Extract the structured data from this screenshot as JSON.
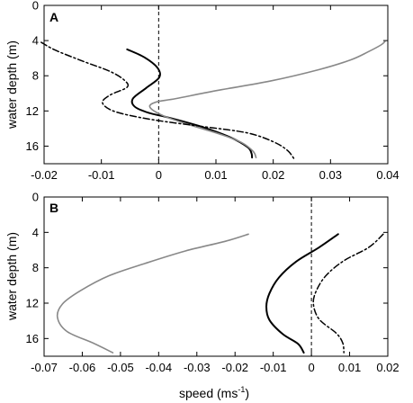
{
  "chart_data": [
    {
      "type": "line",
      "panel_label": "A",
      "ylabel": "water depth (m)",
      "xlabel": "",
      "xlim": [
        -0.02,
        0.04
      ],
      "ylim": [
        18,
        0
      ],
      "x_ticks": [
        -0.02,
        -0.01,
        0,
        0.01,
        0.02,
        0.03,
        0.04
      ],
      "x_tick_labels": [
        "-0.02",
        "-0.01",
        "0",
        "0.01",
        "0.02",
        "0.03",
        "0.04"
      ],
      "y_ticks": [
        0,
        4,
        8,
        12,
        16
      ],
      "y_tick_labels": [
        "0",
        "4",
        "8",
        "12",
        "16"
      ],
      "zero_line": {
        "x": 0,
        "style": "dashed",
        "color": "#000000"
      },
      "series": [
        {
          "color": "#000000",
          "style": "solid",
          "width": 2,
          "points": [
            [
              -0.0055,
              5.0
            ],
            [
              -0.0025,
              5.9
            ],
            [
              -0.0002,
              7.1
            ],
            [
              0.0001,
              8.2
            ],
            [
              -0.0022,
              9.4
            ],
            [
              -0.0045,
              10.6
            ],
            [
              -0.0042,
              11.5
            ],
            [
              -0.0018,
              12.2
            ],
            [
              0.002,
              12.8
            ],
            [
              0.0075,
              13.8
            ],
            [
              0.0125,
              15.0
            ],
            [
              0.0155,
              16.1
            ],
            [
              0.0162,
              16.8
            ],
            [
              0.0163,
              17.3
            ]
          ]
        },
        {
          "color": "#888888",
          "style": "solid",
          "width": 1.6,
          "points": [
            [
              0.0395,
              4.1
            ],
            [
              0.0388,
              4.5
            ],
            [
              0.0365,
              5.3
            ],
            [
              0.0335,
              6.2
            ],
            [
              0.028,
              7.3
            ],
            [
              0.0195,
              8.6
            ],
            [
              0.01,
              9.7
            ],
            [
              0.003,
              10.6
            ],
            [
              -0.0005,
              11.0
            ],
            [
              -0.0015,
              11.6
            ],
            [
              0.001,
              12.6
            ],
            [
              0.0055,
              13.6
            ],
            [
              0.011,
              14.7
            ],
            [
              0.0145,
              15.6
            ],
            [
              0.0165,
              16.6
            ],
            [
              0.017,
              17.3
            ]
          ]
        },
        {
          "color": "#000000",
          "style": "dashdot",
          "width": 1.5,
          "points": [
            [
              -0.0205,
              4.2
            ],
            [
              -0.018,
              5.1
            ],
            [
              -0.013,
              6.4
            ],
            [
              -0.0085,
              7.5
            ],
            [
              -0.006,
              8.5
            ],
            [
              -0.0055,
              9.3
            ],
            [
              -0.0085,
              10.2
            ],
            [
              -0.0098,
              11.1
            ],
            [
              -0.0075,
              12.1
            ],
            [
              -0.001,
              13.0
            ],
            [
              0.008,
              13.8
            ],
            [
              0.0155,
              14.5
            ],
            [
              0.02,
              15.5
            ],
            [
              0.0225,
              16.5
            ],
            [
              0.0238,
              17.6
            ]
          ]
        }
      ]
    },
    {
      "type": "line",
      "panel_label": "B",
      "ylabel": "water depth (m)",
      "xlabel": "speed (ms",
      "xlabel_sup": "-1",
      "xlabel_end": ")",
      "xlim": [
        -0.07,
        0.02
      ],
      "ylim": [
        18,
        0
      ],
      "x_ticks": [
        -0.07,
        -0.06,
        -0.05,
        -0.04,
        -0.03,
        -0.02,
        -0.01,
        0,
        0.01,
        0.02
      ],
      "x_tick_labels": [
        "-0.07",
        "-0.06",
        "-0.05",
        "-0.04",
        "-0.03",
        "-0.02",
        "-0.01",
        "0",
        "0.01",
        "0.02"
      ],
      "y_ticks": [
        0,
        4,
        8,
        12,
        16
      ],
      "y_tick_labels": [
        "0",
        "4",
        "8",
        "12",
        "16"
      ],
      "zero_line": {
        "x": 0,
        "style": "dashed",
        "color": "#000000"
      },
      "series": [
        {
          "color": "#888888",
          "style": "solid",
          "width": 1.6,
          "points": [
            [
              -0.0165,
              4.2
            ],
            [
              -0.0225,
              5.0
            ],
            [
              -0.033,
              6.1
            ],
            [
              -0.0435,
              7.5
            ],
            [
              -0.053,
              8.9
            ],
            [
              -0.0605,
              10.6
            ],
            [
              -0.0652,
              12.1
            ],
            [
              -0.0665,
              13.6
            ],
            [
              -0.064,
              15.2
            ],
            [
              -0.0572,
              16.5
            ],
            [
              -0.052,
              17.6
            ]
          ]
        },
        {
          "color": "#000000",
          "style": "solid",
          "width": 2,
          "points": [
            [
              0.007,
              4.2
            ],
            [
              0.002,
              5.7
            ],
            [
              -0.004,
              7.3
            ],
            [
              -0.0085,
              9.1
            ],
            [
              -0.011,
              10.9
            ],
            [
              -0.0118,
              12.4
            ],
            [
              -0.011,
              13.9
            ],
            [
              -0.0075,
              15.5
            ],
            [
              -0.0035,
              16.6
            ],
            [
              -0.002,
              17.6
            ]
          ]
        },
        {
          "color": "#000000",
          "style": "dashdot",
          "width": 1.5,
          "points": [
            [
              0.0188,
              4.2
            ],
            [
              0.015,
              5.7
            ],
            [
              0.0085,
              7.2
            ],
            [
              0.004,
              8.8
            ],
            [
              0.0015,
              10.4
            ],
            [
              0.0005,
              12.0
            ],
            [
              0.002,
              13.8
            ],
            [
              0.0065,
              15.4
            ],
            [
              0.0082,
              16.5
            ],
            [
              0.0085,
              17.6
            ]
          ]
        }
      ]
    }
  ]
}
